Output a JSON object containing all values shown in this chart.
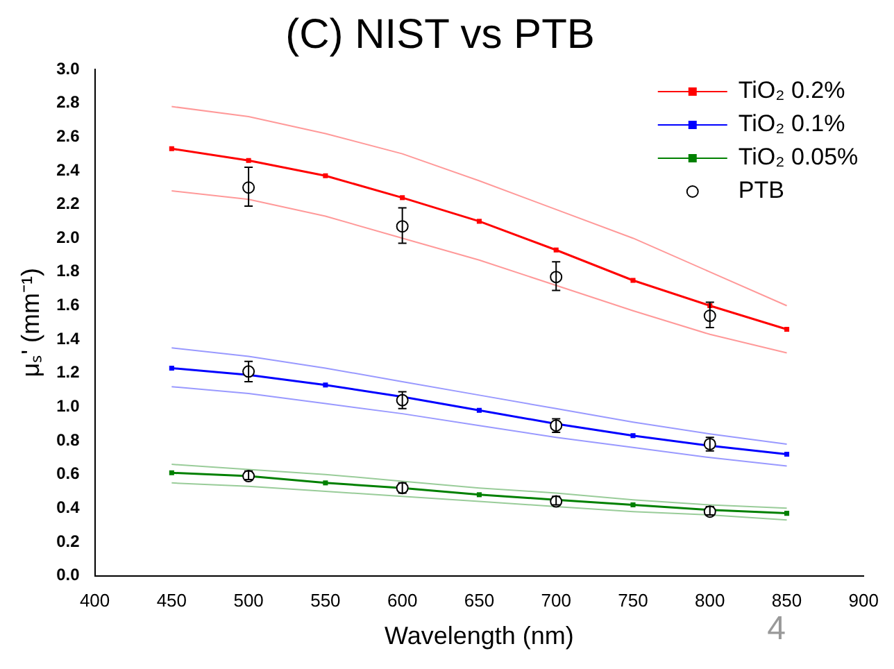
{
  "chart_data": {
    "type": "line",
    "title": "(C) NIST vs PTB",
    "xlabel": "Wavelength (nm)",
    "ylabel": "μₛ' (mm⁻¹)",
    "x": [
      450,
      500,
      550,
      600,
      650,
      700,
      750,
      800,
      850
    ],
    "series": [
      {
        "name": "TiO₂ 0.2%",
        "color": "#ff0000",
        "values": [
          2.53,
          2.46,
          2.37,
          2.24,
          2.1,
          1.93,
          1.75,
          1.6,
          1.46
        ]
      },
      {
        "name": "TiO₂ 0.1%",
        "color": "#0000ff",
        "values": [
          1.23,
          1.19,
          1.13,
          1.06,
          0.98,
          0.9,
          0.83,
          0.77,
          0.72
        ]
      },
      {
        "name": "TiO₂ 0.05%",
        "color": "#008000",
        "values": [
          0.61,
          0.59,
          0.55,
          0.52,
          0.48,
          0.45,
          0.42,
          0.39,
          0.37
        ]
      },
      {
        "name": "PTB",
        "type": "scatter",
        "marker": "circle",
        "color": "#000000",
        "x": [
          500,
          600,
          700,
          800,
          500,
          600,
          700,
          800,
          500,
          600,
          700,
          800
        ],
        "values": [
          2.3,
          2.07,
          1.77,
          1.54,
          1.21,
          1.04,
          0.89,
          0.78,
          0.59,
          0.52,
          0.44,
          0.38
        ],
        "errors": [
          [
            2.19,
            2.42
          ],
          [
            1.97,
            2.18
          ],
          [
            1.69,
            1.86
          ],
          [
            1.47,
            1.62
          ],
          [
            1.15,
            1.27
          ],
          [
            0.99,
            1.09
          ],
          [
            0.85,
            0.93
          ],
          [
            0.74,
            0.82
          ],
          [
            0.57,
            0.62
          ],
          [
            0.49,
            0.55
          ],
          [
            0.42,
            0.47
          ],
          [
            0.36,
            0.41
          ]
        ]
      },
      {
        "color": "#ff9999",
        "marker": "none",
        "values": [
          2.78,
          2.72,
          2.62,
          2.5,
          2.34,
          2.17,
          2.0,
          1.8,
          1.6
        ]
      },
      {
        "color": "#ff9999",
        "marker": "none",
        "values": [
          2.28,
          2.23,
          2.13,
          2.0,
          1.87,
          1.72,
          1.57,
          1.43,
          1.32
        ]
      },
      {
        "color": "#9999ff",
        "marker": "none",
        "values": [
          1.35,
          1.3,
          1.23,
          1.15,
          1.07,
          0.99,
          0.91,
          0.84,
          0.78
        ]
      },
      {
        "color": "#9999ff",
        "marker": "none",
        "values": [
          1.12,
          1.08,
          1.02,
          0.96,
          0.89,
          0.82,
          0.76,
          0.7,
          0.65
        ]
      },
      {
        "color": "#99cc99",
        "marker": "none",
        "values": [
          0.66,
          0.63,
          0.6,
          0.56,
          0.52,
          0.49,
          0.45,
          0.42,
          0.4
        ]
      },
      {
        "color": "#99cc99",
        "marker": "none",
        "values": [
          0.55,
          0.53,
          0.5,
          0.47,
          0.44,
          0.41,
          0.38,
          0.36,
          0.33
        ]
      }
    ],
    "marker": "square",
    "line_style": "solid",
    "xlim": [
      400,
      900
    ],
    "xticks": [
      400,
      450,
      500,
      550,
      600,
      650,
      700,
      750,
      800,
      850,
      900
    ],
    "ylim": [
      0,
      3
    ],
    "yticks": [
      {
        "value": 0,
        "label": "0.0"
      },
      {
        "value": 0.2,
        "label": "0.2"
      },
      {
        "value": 0.4,
        "label": "0.4"
      },
      {
        "value": 0.6,
        "label": "0.6"
      },
      {
        "value": 0.8,
        "label": "0.8"
      },
      {
        "value": 1,
        "label": "1.0"
      },
      {
        "value": 1.2,
        "label": "1.2"
      },
      {
        "value": 1.4,
        "label": "1.4"
      },
      {
        "value": 1.6,
        "label": "1.6"
      },
      {
        "value": 1.8,
        "label": "1.8"
      },
      {
        "value": 2,
        "label": "2.0"
      },
      {
        "value": 2.2,
        "label": "2.2"
      },
      {
        "value": 2.4,
        "label": "2.4"
      },
      {
        "value": 2.6,
        "label": "2.6"
      },
      {
        "value": 2.8,
        "label": "2.8"
      },
      {
        "value": 3,
        "label": "3.0"
      }
    ],
    "grid": false,
    "legend": "top right",
    "annotations": [
      "4"
    ]
  }
}
